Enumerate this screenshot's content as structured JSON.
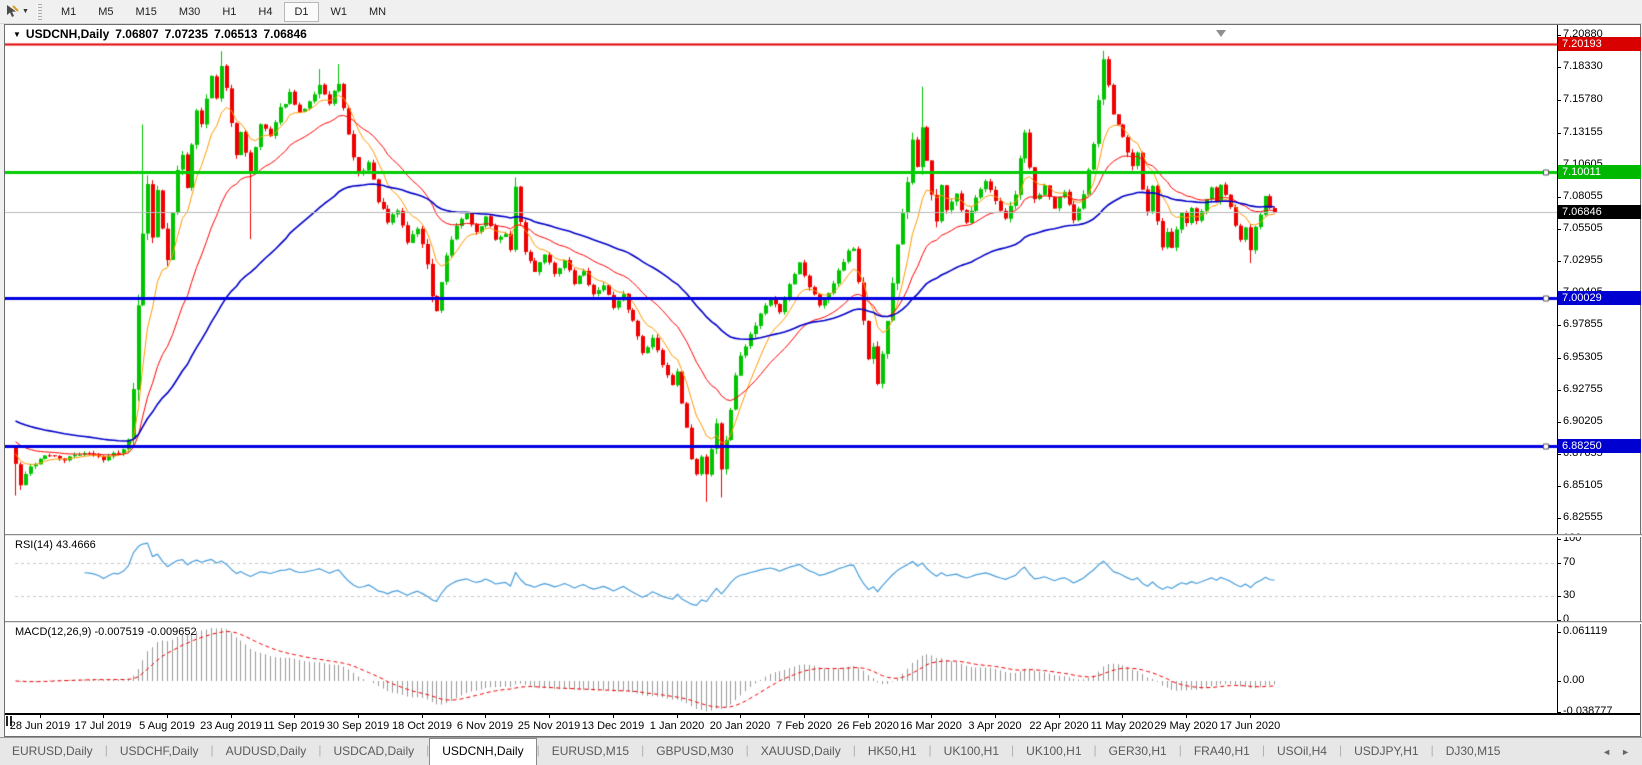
{
  "toolbar": {
    "timeframes": [
      "M1",
      "M5",
      "M15",
      "M30",
      "H1",
      "H4",
      "D1",
      "W1",
      "MN"
    ],
    "active_timeframe": "D1"
  },
  "icons": {
    "title_dropdown": "▼",
    "tool_dropdown": "▼",
    "tabs_scroll_left": "◄",
    "tabs_scroll_right": "►"
  },
  "chart": {
    "title": {
      "symbol": "USDCNH,Daily",
      "open": "7.06807",
      "high": "7.07235",
      "low": "7.06513",
      "close": "7.06846"
    }
  },
  "chart_data": {
    "type": "candlestick",
    "symbol": "USDCNH",
    "timeframe": "Daily",
    "bars": 258,
    "last_close": 7.06846,
    "colors": {
      "up": "#00C400",
      "down": "#EE0000",
      "ma_fast": "#FF9900",
      "ma_mid": "#FF0000",
      "ma_slow": "#0000C8",
      "rsi_line": "#4A9EDB",
      "macd_hist": "#9A9A9A",
      "macd_signal": "#EE0000",
      "current_price_line": "#B8B8B8"
    },
    "y_ticks": [
      "7.20880",
      "7.18330",
      "7.15780",
      "7.13155",
      "7.10605",
      "7.08055",
      "7.05505",
      "7.02955",
      "7.00405",
      "6.97855",
      "6.95305",
      "6.92755",
      "6.90205",
      "6.87655",
      "6.85105",
      "6.82555"
    ],
    "hlines": [
      {
        "name": "resistance-line",
        "price": 7.20193,
        "label": "7.20193",
        "color": "#E00000",
        "width": 2,
        "badge_bg": "#D90000",
        "handle": false
      },
      {
        "name": "pivot-line-green",
        "price": 7.10011,
        "label": "7.10011",
        "color": "#00CC00",
        "width": 3,
        "badge_bg": "#00B800",
        "handle": true
      },
      {
        "name": "current-price-line",
        "price": 7.06846,
        "label": "7.06846",
        "color": "#B8B8B8",
        "width": 1,
        "badge_bg": "#000000",
        "handle": false
      },
      {
        "name": "support-line-1",
        "price": 7.00029,
        "label": "7.00029",
        "color": "#0000E0",
        "width": 3,
        "badge_bg": "#0000D0",
        "handle": true
      },
      {
        "name": "support-line-2",
        "price": 6.8825,
        "label": "6.88250",
        "color": "#0000E0",
        "width": 3,
        "badge_bg": "#0000D0",
        "handle": true
      }
    ],
    "ma_lines": [
      {
        "name": "ma-fast",
        "period": 8,
        "color": "#FF9900",
        "width": 1,
        "seed": 6.879
      },
      {
        "name": "ma-mid",
        "period": 22,
        "color": "#FF0000",
        "width": 1,
        "seed": 6.888
      },
      {
        "name": "ma-slow",
        "period": 55,
        "color": "#0000C8",
        "width": 1.6,
        "seed": 6.904
      }
    ],
    "close_anchors": [
      [
        0,
        6.868,
        0.01
      ],
      [
        1,
        6.852,
        0.008
      ],
      [
        3,
        6.866,
        0.005
      ],
      [
        6,
        6.876,
        0.004
      ],
      [
        10,
        6.872,
        0.004
      ],
      [
        14,
        6.878,
        0.004
      ],
      [
        18,
        6.873,
        0.004
      ],
      [
        22,
        6.88,
        0.004
      ],
      [
        23,
        6.89,
        0.006
      ],
      [
        24,
        6.93,
        0.012
      ],
      [
        25,
        7.0,
        0.018
      ],
      [
        26,
        7.055,
        0.016
      ],
      [
        27,
        7.088,
        0.014
      ],
      [
        28,
        7.048,
        0.013
      ],
      [
        29,
        7.09,
        0.012
      ],
      [
        30,
        7.058,
        0.011
      ],
      [
        31,
        7.028,
        0.01
      ],
      [
        32,
        7.068,
        0.01
      ],
      [
        33,
        7.1,
        0.009
      ],
      [
        34,
        7.115,
        0.009
      ],
      [
        35,
        7.088,
        0.009
      ],
      [
        36,
        7.125,
        0.009
      ],
      [
        37,
        7.152,
        0.009
      ],
      [
        38,
        7.138,
        0.008
      ],
      [
        40,
        7.178,
        0.008
      ],
      [
        41,
        7.158,
        0.008
      ],
      [
        42,
        7.186,
        0.008
      ],
      [
        43,
        7.168,
        0.007
      ],
      [
        44,
        7.138,
        0.007
      ],
      [
        45,
        7.112,
        0.007
      ],
      [
        46,
        7.132,
        0.006
      ],
      [
        48,
        7.102,
        0.007
      ],
      [
        50,
        7.14,
        0.006
      ],
      [
        52,
        7.128,
        0.006
      ],
      [
        54,
        7.15,
        0.006
      ],
      [
        56,
        7.162,
        0.006
      ],
      [
        58,
        7.146,
        0.006
      ],
      [
        60,
        7.158,
        0.006
      ],
      [
        62,
        7.17,
        0.006
      ],
      [
        64,
        7.154,
        0.006
      ],
      [
        66,
        7.172,
        0.006
      ],
      [
        67,
        7.15,
        0.007
      ],
      [
        68,
        7.128,
        0.007
      ],
      [
        70,
        7.098,
        0.007
      ],
      [
        72,
        7.108,
        0.006
      ],
      [
        74,
        7.078,
        0.006
      ],
      [
        76,
        7.06,
        0.006
      ],
      [
        78,
        7.07,
        0.006
      ],
      [
        80,
        7.045,
        0.006
      ],
      [
        82,
        7.056,
        0.006
      ],
      [
        84,
        7.028,
        0.007
      ],
      [
        85,
        7.002,
        0.009
      ],
      [
        86,
        6.988,
        0.008
      ],
      [
        87,
        7.012,
        0.007
      ],
      [
        88,
        7.032,
        0.006
      ],
      [
        90,
        7.058,
        0.006
      ],
      [
        92,
        7.068,
        0.005
      ],
      [
        94,
        7.052,
        0.005
      ],
      [
        96,
        7.064,
        0.005
      ],
      [
        98,
        7.048,
        0.005
      ],
      [
        100,
        7.05,
        0.005
      ],
      [
        101,
        7.04,
        0.006
      ],
      [
        102,
        7.086,
        0.008
      ],
      [
        103,
        7.062,
        0.006
      ],
      [
        104,
        7.036,
        0.006
      ],
      [
        106,
        7.022,
        0.005
      ],
      [
        108,
        7.036,
        0.005
      ],
      [
        110,
        7.02,
        0.005
      ],
      [
        112,
        7.03,
        0.005
      ],
      [
        114,
        7.012,
        0.005
      ],
      [
        116,
        7.022,
        0.005
      ],
      [
        118,
        7.002,
        0.005
      ],
      [
        120,
        7.012,
        0.005
      ],
      [
        122,
        6.992,
        0.005
      ],
      [
        124,
        7.002,
        0.005
      ],
      [
        126,
        6.982,
        0.005
      ],
      [
        128,
        6.958,
        0.006
      ],
      [
        130,
        6.968,
        0.005
      ],
      [
        132,
        6.948,
        0.006
      ],
      [
        134,
        6.932,
        0.006
      ],
      [
        135,
        6.944,
        0.006
      ],
      [
        136,
        6.918,
        0.007
      ],
      [
        137,
        6.895,
        0.007
      ],
      [
        138,
        6.872,
        0.007
      ],
      [
        139,
        6.858,
        0.007
      ],
      [
        140,
        6.876,
        0.007
      ],
      [
        141,
        6.862,
        0.007
      ],
      [
        142,
        6.88,
        0.008
      ],
      [
        143,
        6.902,
        0.008
      ],
      [
        144,
        6.865,
        0.01
      ],
      [
        145,
        6.888,
        0.008
      ],
      [
        146,
        6.912,
        0.008
      ],
      [
        147,
        6.938,
        0.007
      ],
      [
        148,
        6.955,
        0.006
      ],
      [
        150,
        6.97,
        0.006
      ],
      [
        152,
        6.988,
        0.005
      ],
      [
        154,
        7.0,
        0.005
      ],
      [
        156,
        6.99,
        0.005
      ],
      [
        158,
        7.012,
        0.005
      ],
      [
        160,
        7.028,
        0.005
      ],
      [
        162,
        7.01,
        0.005
      ],
      [
        164,
        6.995,
        0.005
      ],
      [
        166,
        7.005,
        0.005
      ],
      [
        168,
        7.022,
        0.005
      ],
      [
        170,
        7.038,
        0.006
      ],
      [
        171,
        7.04,
        0.006
      ],
      [
        172,
        7.012,
        0.007
      ],
      [
        173,
        6.98,
        0.008
      ],
      [
        174,
        6.95,
        0.008
      ],
      [
        175,
        6.962,
        0.007
      ],
      [
        176,
        6.934,
        0.008
      ],
      [
        177,
        6.954,
        0.008
      ],
      [
        178,
        6.982,
        0.008
      ],
      [
        179,
        7.01,
        0.009
      ],
      [
        180,
        7.04,
        0.01
      ],
      [
        181,
        7.068,
        0.01
      ],
      [
        182,
        7.095,
        0.011
      ],
      [
        183,
        7.125,
        0.012
      ],
      [
        184,
        7.102,
        0.011
      ],
      [
        185,
        7.138,
        0.011
      ],
      [
        186,
        7.11,
        0.01
      ],
      [
        187,
        7.082,
        0.009
      ],
      [
        188,
        7.058,
        0.009
      ],
      [
        189,
        7.09,
        0.008
      ],
      [
        190,
        7.068,
        0.008
      ],
      [
        192,
        7.082,
        0.007
      ],
      [
        194,
        7.062,
        0.006
      ],
      [
        196,
        7.08,
        0.006
      ],
      [
        198,
        7.092,
        0.006
      ],
      [
        200,
        7.076,
        0.006
      ],
      [
        202,
        7.062,
        0.006
      ],
      [
        204,
        7.082,
        0.006
      ],
      [
        205,
        7.112,
        0.008
      ],
      [
        206,
        7.132,
        0.008
      ],
      [
        207,
        7.102,
        0.007
      ],
      [
        208,
        7.078,
        0.006
      ],
      [
        210,
        7.088,
        0.006
      ],
      [
        212,
        7.072,
        0.006
      ],
      [
        214,
        7.086,
        0.006
      ],
      [
        216,
        7.064,
        0.006
      ],
      [
        218,
        7.082,
        0.006
      ],
      [
        220,
        7.12,
        0.008
      ],
      [
        221,
        7.155,
        0.009
      ],
      [
        222,
        7.19,
        0.009
      ],
      [
        223,
        7.168,
        0.008
      ],
      [
        224,
        7.148,
        0.008
      ],
      [
        226,
        7.13,
        0.007
      ],
      [
        228,
        7.106,
        0.007
      ],
      [
        229,
        7.116,
        0.006
      ],
      [
        230,
        7.086,
        0.006
      ],
      [
        231,
        7.068,
        0.007
      ],
      [
        232,
        7.088,
        0.006
      ],
      [
        233,
        7.06,
        0.006
      ],
      [
        234,
        7.042,
        0.007
      ],
      [
        235,
        7.052,
        0.006
      ],
      [
        236,
        7.04,
        0.006
      ],
      [
        237,
        7.055,
        0.006
      ],
      [
        238,
        7.068,
        0.006
      ],
      [
        239,
        7.06,
        0.006
      ],
      [
        240,
        7.072,
        0.005
      ],
      [
        241,
        7.062,
        0.005
      ],
      [
        242,
        7.07,
        0.005
      ],
      [
        243,
        7.08,
        0.005
      ],
      [
        244,
        7.088,
        0.005
      ],
      [
        245,
        7.078,
        0.006
      ],
      [
        246,
        7.09,
        0.005
      ],
      [
        247,
        7.082,
        0.005
      ],
      [
        248,
        7.072,
        0.005
      ],
      [
        249,
        7.058,
        0.006
      ],
      [
        250,
        7.048,
        0.006
      ],
      [
        251,
        7.058,
        0.005
      ],
      [
        252,
        7.04,
        0.007
      ],
      [
        253,
        7.055,
        0.006
      ],
      [
        254,
        7.068,
        0.005
      ],
      [
        255,
        7.08,
        0.005
      ],
      [
        256,
        7.072,
        0.004
      ],
      [
        257,
        7.06846,
        0.003
      ]
    ],
    "spikes": [
      [
        0,
        "L",
        6.8435
      ],
      [
        1,
        "L",
        6.848
      ],
      [
        26,
        "H",
        7.138
      ],
      [
        42,
        "H",
        7.1962
      ],
      [
        48,
        "L",
        7.047
      ],
      [
        62,
        "H",
        7.182
      ],
      [
        66,
        "H",
        7.186
      ],
      [
        102,
        "H",
        7.096
      ],
      [
        141,
        "L",
        6.8385
      ],
      [
        144,
        "L",
        6.842
      ],
      [
        185,
        "H",
        7.168
      ],
      [
        222,
        "H",
        7.1965
      ],
      [
        252,
        "L",
        7.028
      ]
    ],
    "x_labels": [
      "28 Jun 2019",
      "17 Jul 2019",
      "5 Aug 2019",
      "23 Aug 2019",
      "11 Sep 2019",
      "30 Sep 2019",
      "18 Oct 2019",
      "6 Nov 2019",
      "25 Nov 2019",
      "13 Dec 2019",
      "1 Jan 2020",
      "20 Jan 2020",
      "7 Feb 2020",
      "26 Feb 2020",
      "16 Mar 2020",
      "3 Apr 2020",
      "22 Apr 2020",
      "11 May 2020",
      "29 May 2020",
      "17 Jun 2020"
    ],
    "x_label_first_index": 5,
    "x_label_step": 13,
    "rsi": {
      "label": "RSI(14) 43.4666",
      "period": 14,
      "current": "43.4666",
      "levels": [
        70,
        30
      ],
      "ticks": [
        "100",
        "70",
        "30",
        "0"
      ]
    },
    "macd": {
      "label": "MACD(12,26,9) -0.007519 -0.009652",
      "fast": 12,
      "slow": 26,
      "signal": 9,
      "macd_value": "-0.007519",
      "signal_value": "-0.009652",
      "ticks": [
        "0.061119",
        "0.00",
        "-0.038777"
      ],
      "range": [
        -0.038777,
        0.061119
      ]
    }
  },
  "tabs": {
    "items": [
      "EURUSD,Daily",
      "USDCHF,Daily",
      "AUDUSD,Daily",
      "USDCAD,Daily",
      "USDCNH,Daily",
      "EURUSD,M15",
      "GBPUSD,M30",
      "XAUUSD,Daily",
      "HK50,H1",
      "UK100,H1",
      "UK100,H1",
      "GER30,H1",
      "FRA40,H1",
      "USOil,H4",
      "USDJPY,H1",
      "DJ30,M15"
    ],
    "active_index": 4
  }
}
